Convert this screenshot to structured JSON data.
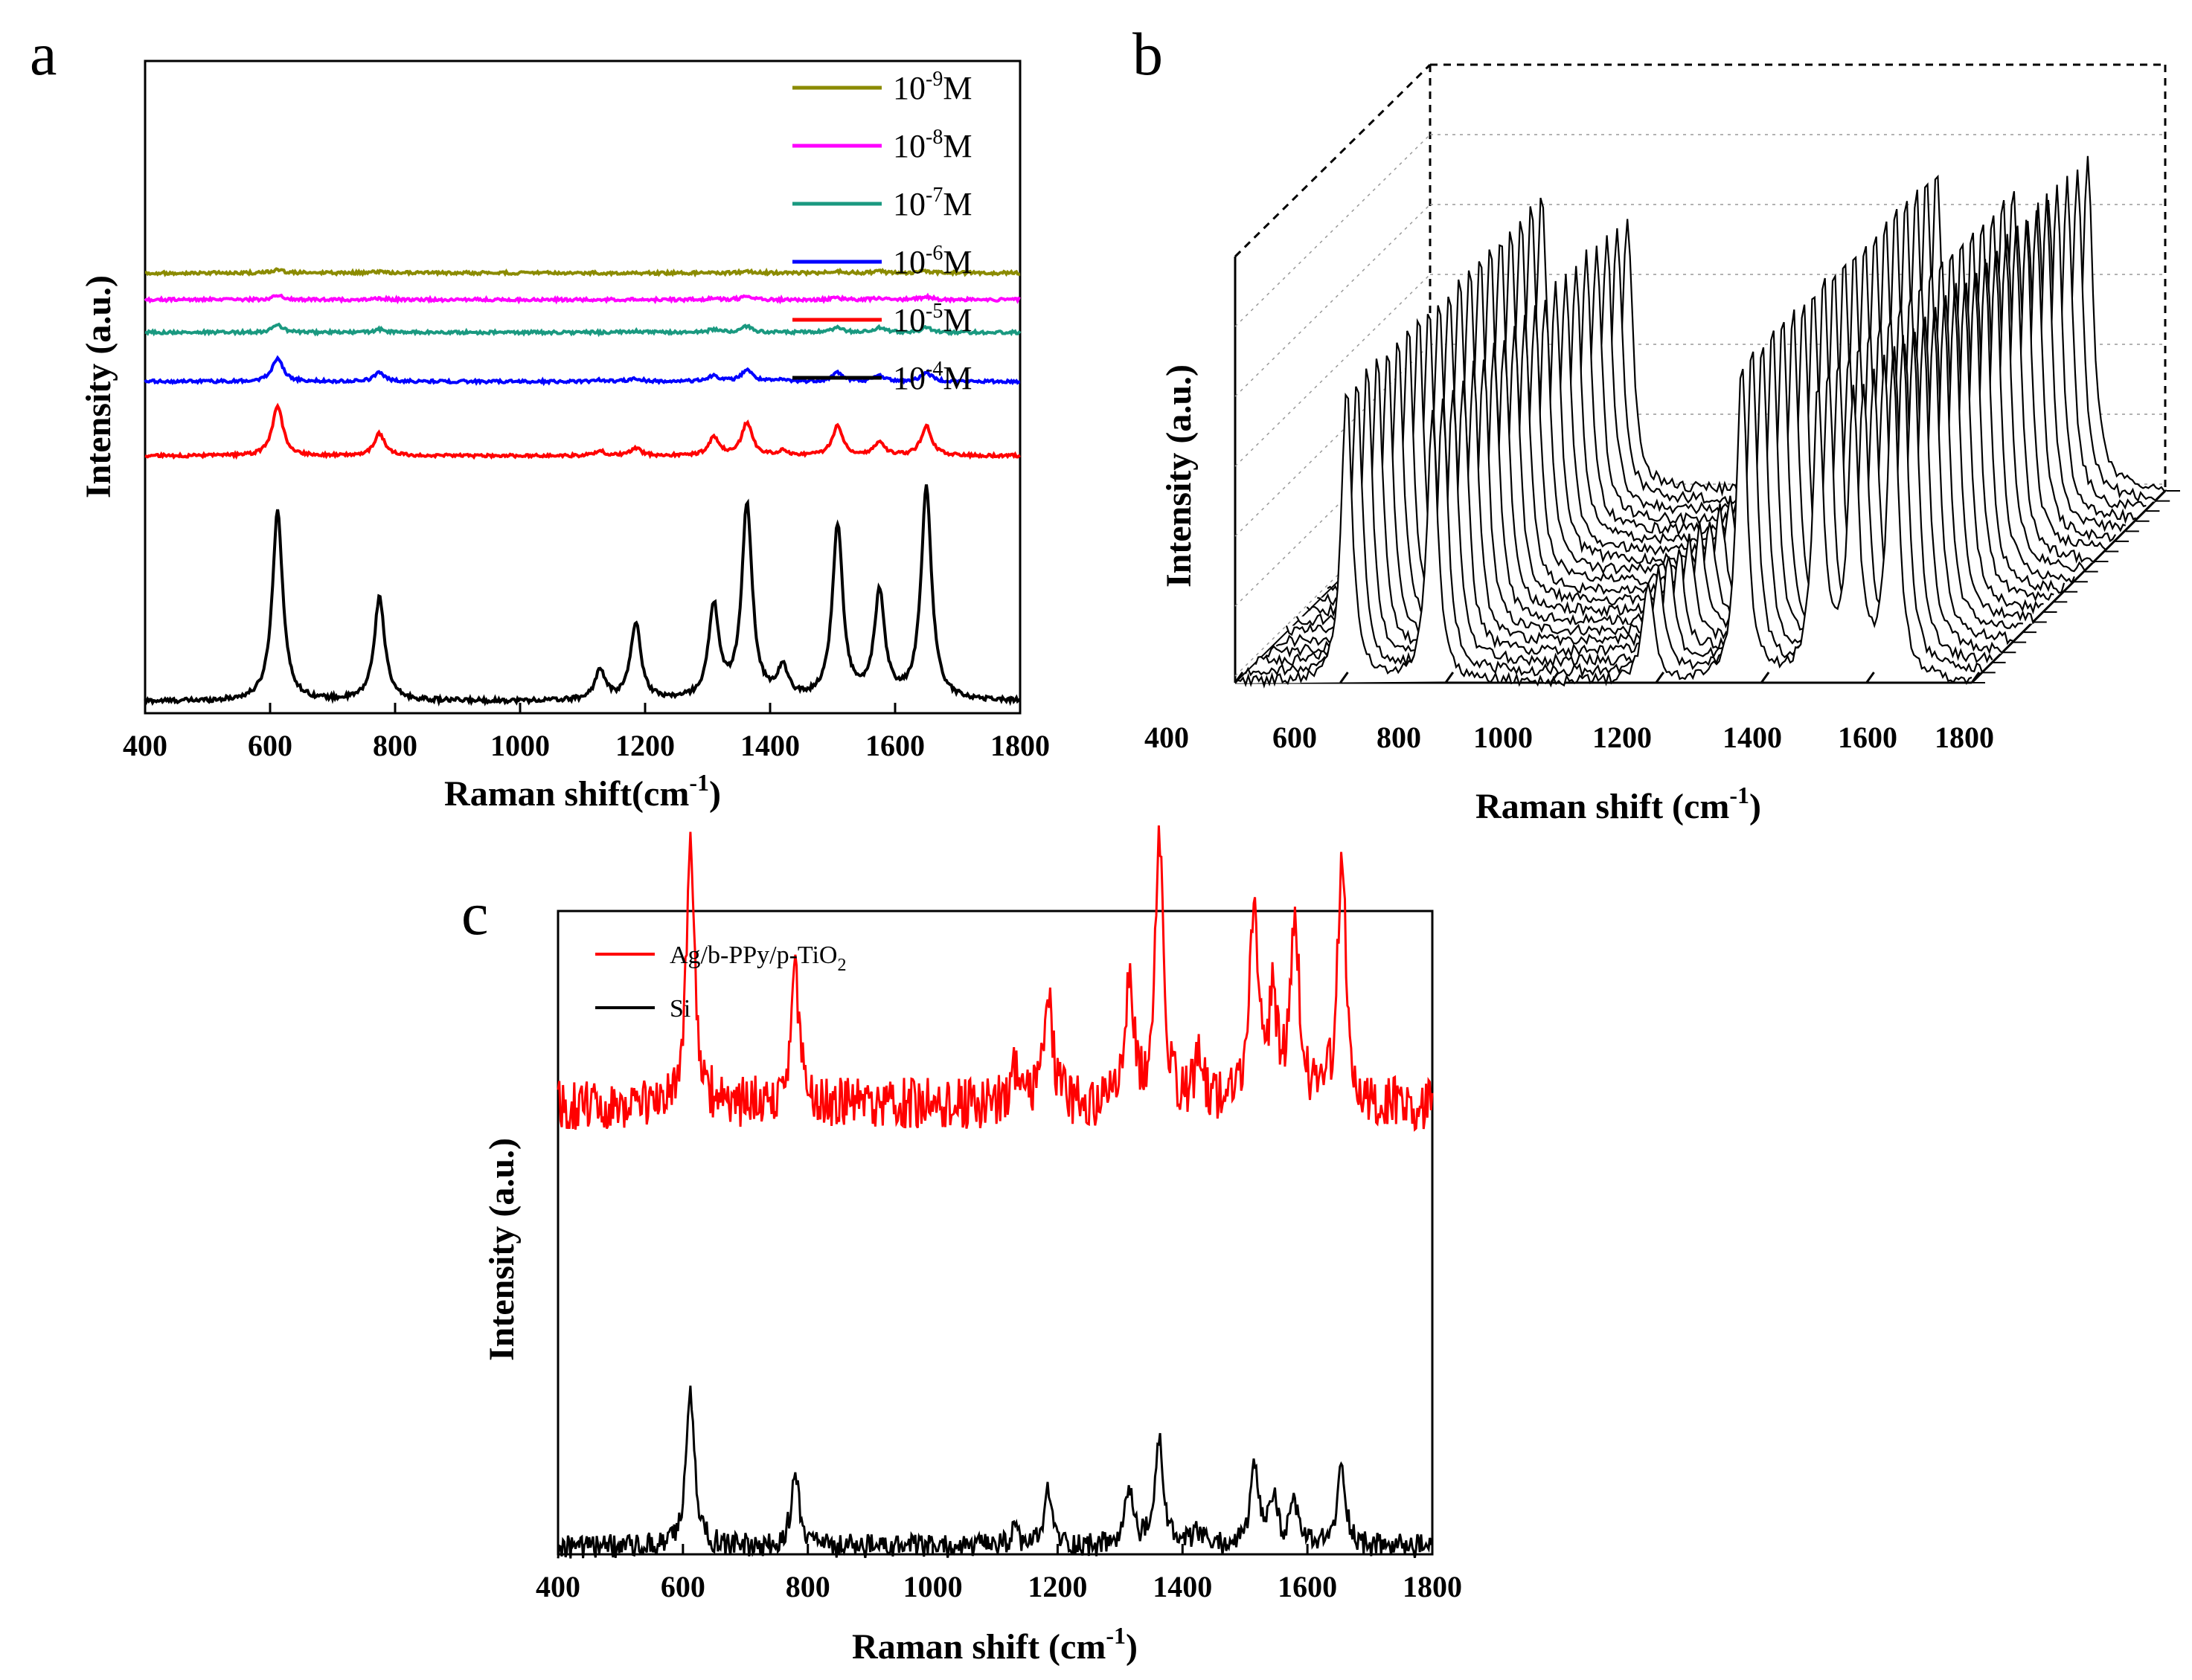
{
  "chart_data": [
    {
      "panel": "a",
      "type": "line",
      "xlabel": "Raman shift(cm",
      "xlabel_sup": "-1",
      "xlabel_tail": ")",
      "ylabel": "Intensity (a.u.)",
      "xlim": [
        400,
        1800
      ],
      "xticks": [
        "400",
        "600",
        "800",
        "1000",
        "1200",
        "1400",
        "1600",
        "1800"
      ],
      "peaks": [
        612,
        775,
        1128,
        1185,
        1310,
        1363,
        1420,
        1508,
        1575,
        1650
      ],
      "series": [
        {
          "name": "10-4M",
          "base": "10",
          "exp": "-4",
          "unit": "M",
          "color": "#000000",
          "offset": 0,
          "heights": [
            128,
            70,
            20,
            52,
            62,
            131,
            20,
            117,
            71,
            143
          ]
        },
        {
          "name": "10-5M",
          "base": "10",
          "exp": "-5",
          "unit": "M",
          "color": "#ff0000",
          "offset": 165,
          "heights": [
            34,
            15,
            3,
            5,
            12,
            22,
            3,
            20,
            9,
            20
          ]
        },
        {
          "name": "10-6M",
          "base": "10",
          "exp": "-6",
          "unit": "M",
          "color": "#0000ff",
          "offset": 215,
          "heights": [
            16,
            6,
            1,
            2,
            4,
            8,
            1,
            6,
            4,
            6
          ]
        },
        {
          "name": "10-7M",
          "base": "10",
          "exp": "-7",
          "unit": "M",
          "color": "#1a9980",
          "offset": 248,
          "heights": [
            5,
            2,
            0,
            1,
            2,
            4,
            0,
            3,
            3,
            3
          ]
        },
        {
          "name": "10-8M",
          "base": "10",
          "exp": "-8",
          "unit": "M",
          "color": "#ff00ff",
          "offset": 270,
          "heights": [
            3,
            1,
            0,
            0,
            1,
            2,
            0,
            1,
            1,
            2
          ]
        },
        {
          "name": "10-9M",
          "base": "10",
          "exp": "-9",
          "unit": "M",
          "color": "#8b8b00",
          "offset": 288,
          "heights": [
            2,
            1,
            0,
            0,
            0,
            1,
            0,
            1,
            1,
            1
          ]
        }
      ]
    },
    {
      "panel": "b",
      "type": "line",
      "view": "3d-waterfall",
      "xlabel": "Raman shift (cm",
      "xlabel_sup": "-1",
      "xlabel_tail": ")",
      "ylabel": "Intensity (a.u.)",
      "xlim": [
        400,
        1800
      ],
      "xticks": [
        "400",
        "600",
        "800",
        "1000",
        "1200",
        "1400",
        "1600",
        "1800"
      ],
      "spectra_count": 20,
      "peaks": [
        612,
        775,
        1185,
        1363,
        1508,
        1575,
        1650
      ],
      "heights": [
        275,
        255,
        95,
        300,
        270,
        255,
        300
      ]
    },
    {
      "panel": "c",
      "type": "line",
      "xlabel": "Raman shift (cm",
      "xlabel_sup": "-1",
      "xlabel_tail": ")",
      "ylabel": "Intensity (a.u.)",
      "xlim": [
        400,
        1800
      ],
      "xticks": [
        "400",
        "600",
        "800",
        "1000",
        "1200",
        "1400",
        "1600",
        "1800"
      ],
      "peaks": [
        612,
        780,
        1130,
        1185,
        1315,
        1363,
        1425,
        1515,
        1545,
        1580,
        1655
      ],
      "series": [
        {
          "name": "Ag/b-PPy/p-TiO2",
          "label_main": "Ag/b-PPy/p-TiO",
          "label_sub": "2",
          "color": "#ff0000",
          "offset": 330,
          "heights": [
            185,
            95,
            25,
            80,
            90,
            190,
            30,
            150,
            70,
            140,
            185
          ]
        },
        {
          "name": "Si",
          "label_main": "Si",
          "label_sub": "",
          "color": "#000000",
          "offset": 0,
          "heights": [
            113,
            55,
            10,
            40,
            42,
            78,
            10,
            55,
            35,
            30,
            60
          ]
        }
      ]
    }
  ],
  "panel_labels": {
    "a": "a",
    "b": "b",
    "c": "c"
  }
}
